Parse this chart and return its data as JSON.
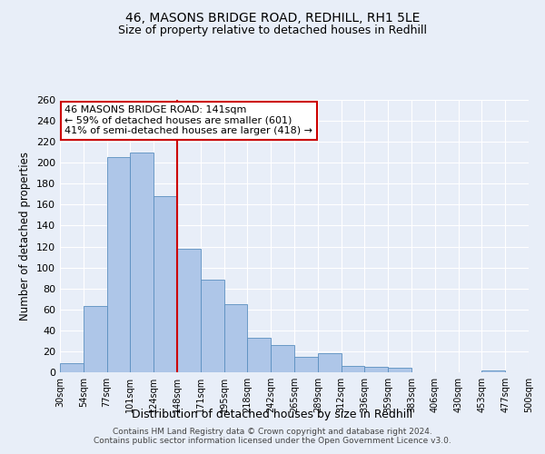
{
  "title1": "46, MASONS BRIDGE ROAD, REDHILL, RH1 5LE",
  "title2": "Size of property relative to detached houses in Redhill",
  "xlabel": "Distribution of detached houses by size in Redhill",
  "ylabel": "Number of detached properties",
  "bin_labels": [
    "30sqm",
    "54sqm",
    "77sqm",
    "101sqm",
    "124sqm",
    "148sqm",
    "171sqm",
    "195sqm",
    "218sqm",
    "242sqm",
    "265sqm",
    "289sqm",
    "312sqm",
    "336sqm",
    "359sqm",
    "383sqm",
    "406sqm",
    "430sqm",
    "453sqm",
    "477sqm",
    "500sqm"
  ],
  "bar_values": [
    9,
    63,
    205,
    210,
    168,
    118,
    88,
    65,
    33,
    26,
    15,
    18,
    6,
    5,
    4,
    0,
    0,
    0,
    2,
    0,
    0
  ],
  "bar_color": "#aec6e8",
  "bar_edge_color": "#5a8fc0",
  "vline_x": 5,
  "vline_color": "#cc0000",
  "annotation_title": "46 MASONS BRIDGE ROAD: 141sqm",
  "annotation_line1": "← 59% of detached houses are smaller (601)",
  "annotation_line2": "41% of semi-detached houses are larger (418) →",
  "annotation_box_color": "#ffffff",
  "annotation_box_edge": "#cc0000",
  "ylim": [
    0,
    260
  ],
  "yticks": [
    0,
    20,
    40,
    60,
    80,
    100,
    120,
    140,
    160,
    180,
    200,
    220,
    240,
    260
  ],
  "footer1": "Contains HM Land Registry data © Crown copyright and database right 2024.",
  "footer2": "Contains public sector information licensed under the Open Government Licence v3.0.",
  "bg_color": "#e8eef8",
  "title_fontsize": 10,
  "subtitle_fontsize": 9
}
